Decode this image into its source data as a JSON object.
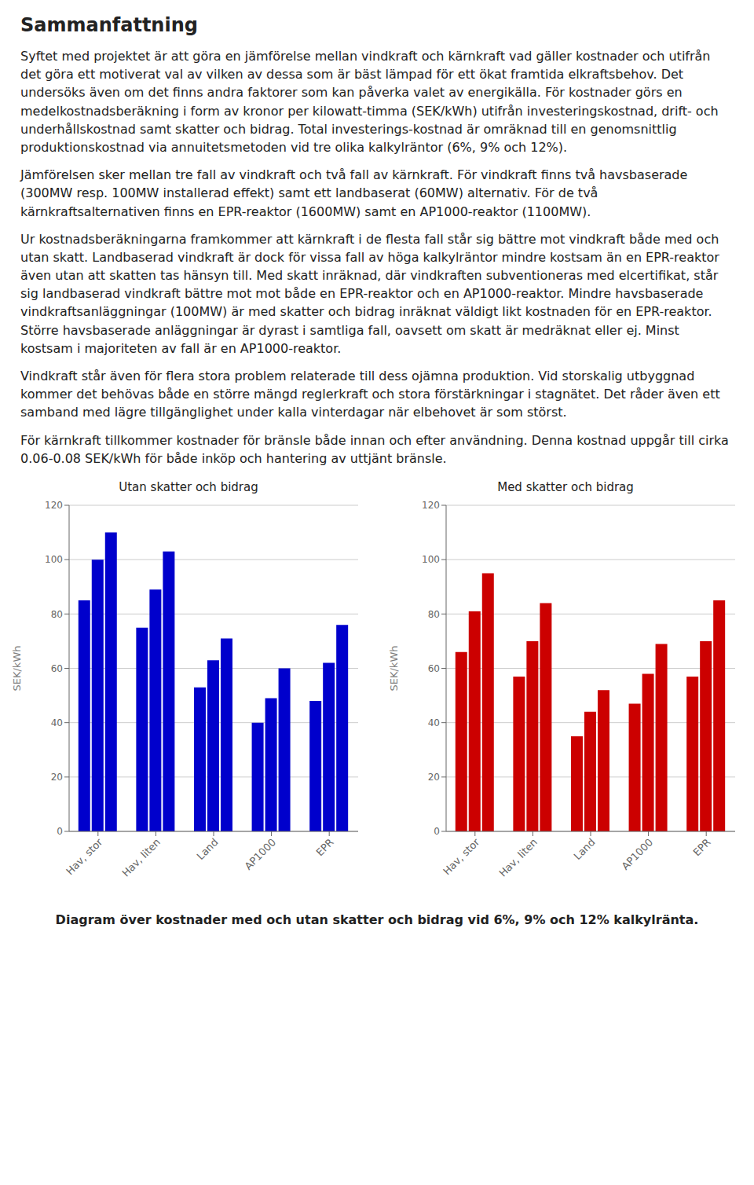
{
  "title": "Sammanfattning",
  "body_text": [
    "Syftet med projektet är att göra en jämförelse mellan vindkraft och kärnkraft vad gäller kostnader och utifrån det göra ett motiverat val av vilken av dessa som är bäst lämpad för ett ökat framtida elkraftsbehov. Det undersöks även om det finns andra faktorer som kan påverka valet av energikälla. För kostnader görs en medelkostnadsberäkning i form av kronor per kilowatt-timma (SEK/kWh) utifrån investeringskostnad, drift- och underhållskostnad samt skatter och bidrag. Total investerings-kostnad är omräknad till en genomsnittlig produktionskostnad via annuitetsmetoden vid tre olika kalkylräntor (6%, 9% och 12%).",
    "Jämförelsen sker mellan tre fall av vindkraft och två fall av kärnkraft. För vindkraft finns två havsbaserade (300MW resp. 100MW installerad effekt) samt ett landbaserat (60MW) alternativ. För de två kärnkraftsalternativen finns en EPR-reaktor (1600MW) samt en AP1000-reaktor (1100MW).",
    "Ur kostnadsberäkningarna framkommer att kärnkraft i de flesta fall står sig bättre mot vindkraft både med och utan skatt. Landbaserad vindkraft är dock för vissa fall av höga kalkylräntor mindre kostsam än en EPR-reaktor även utan att skatten tas hänsyn till. Med skatt inräknad, där vindkraften subventioneras med elcertifikat, står sig landbaserad vindkraft bättre mot mot både en EPR-reaktor och en AP1000-reaktor. Mindre havsbaserade vindkraftsanläggningar (100MW) är med skatter och bidrag inräknat väldigt likt kostnaden för en EPR-reaktor. Större havsbaserade anläggningar är dyrast i samtliga fall, oavsett om skatt är medräknat eller ej. Minst kostsam i majoriteten av fall är en AP1000-reaktor.",
    "Vindkraft står även för flera stora problem relaterade till dess ojämna produktion. Vid storskalig utbyggnad kommer det behövas både en större mängd reglerkraft och stora förstärkningar i stagnätet. Det råder även ett samband med lägre tillgänglighet under kalla vinterdagar när elbehovet är som störst.",
    "För kärnkraft tillkommer kostnader för bränsle både innan och efter användning. Denna kostnad uppgår till cirka 0.06-0.08 SEK/kWh för både inköp och hantering av uttjänt bränsle."
  ],
  "caption": "Diagram över kostnader med och utan skatter och bidrag vid 6%, 9% och 12% kalkylränta.",
  "chart_data": [
    {
      "type": "bar",
      "title": "Utan skatter och bidrag",
      "categories": [
        "Hav, stor",
        "Hav, liten",
        "Land",
        "AP1000",
        "EPR"
      ],
      "ylabel": "SEK/kWh",
      "ylim": [
        0,
        120
      ],
      "yticks": [
        0,
        20,
        40,
        60,
        80,
        100,
        120
      ],
      "grid": true,
      "color": "#0000CC",
      "series": [
        {
          "values": [
            85,
            75,
            53,
            40,
            48
          ]
        },
        {
          "values": [
            100,
            89,
            63,
            49,
            62
          ]
        },
        {
          "values": [
            110,
            103,
            71,
            60,
            76
          ]
        }
      ]
    },
    {
      "type": "bar",
      "title": "Med skatter och bidrag",
      "categories": [
        "Hav, stor",
        "Hav, liten",
        "Land",
        "AP1000",
        "EPR"
      ],
      "ylabel": "SEK/kWh",
      "ylim": [
        0,
        120
      ],
      "yticks": [
        0,
        20,
        40,
        60,
        80,
        100,
        120
      ],
      "grid": true,
      "color": "#CC0000",
      "series": [
        {
          "values": [
            66,
            57,
            35,
            47,
            57
          ]
        },
        {
          "values": [
            81,
            70,
            44,
            58,
            70
          ]
        },
        {
          "values": [
            95,
            84,
            52,
            69,
            85
          ]
        }
      ]
    }
  ]
}
